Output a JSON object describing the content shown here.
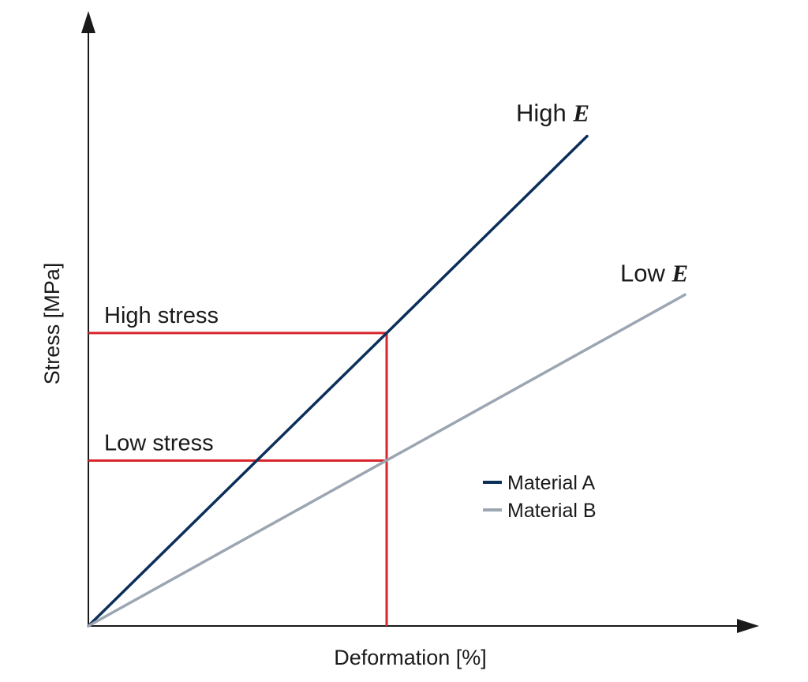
{
  "chart_data": {
    "type": "line",
    "title": "",
    "xlabel": "Deformation [%]",
    "ylabel": "Stress [MPa]",
    "xlim": [
      0,
      1.13
    ],
    "ylim": [
      0,
      1.0
    ],
    "grid": false,
    "legend_position": "lower-right",
    "series": [
      {
        "name": "Material A",
        "color": "#0c2f5a",
        "x": [
          0,
          0.836
        ],
        "y": [
          0,
          0.933
        ]
      },
      {
        "name": "Material B",
        "color": "#9ba6b2",
        "x": [
          0,
          1.0
        ],
        "y": [
          0,
          0.631
        ]
      }
    ],
    "annotations": [
      {
        "text_prefix": "High ",
        "text_em": "E",
        "series": "Material A"
      },
      {
        "text_prefix": "Low ",
        "text_em": "E",
        "series": "Material B"
      }
    ],
    "reference_lines": {
      "color": "#d9262e",
      "x": 0.5,
      "high_stress": {
        "label": "High stress",
        "y": 0.558
      },
      "low_stress": {
        "label": "Low stress",
        "y": 0.315
      }
    }
  }
}
